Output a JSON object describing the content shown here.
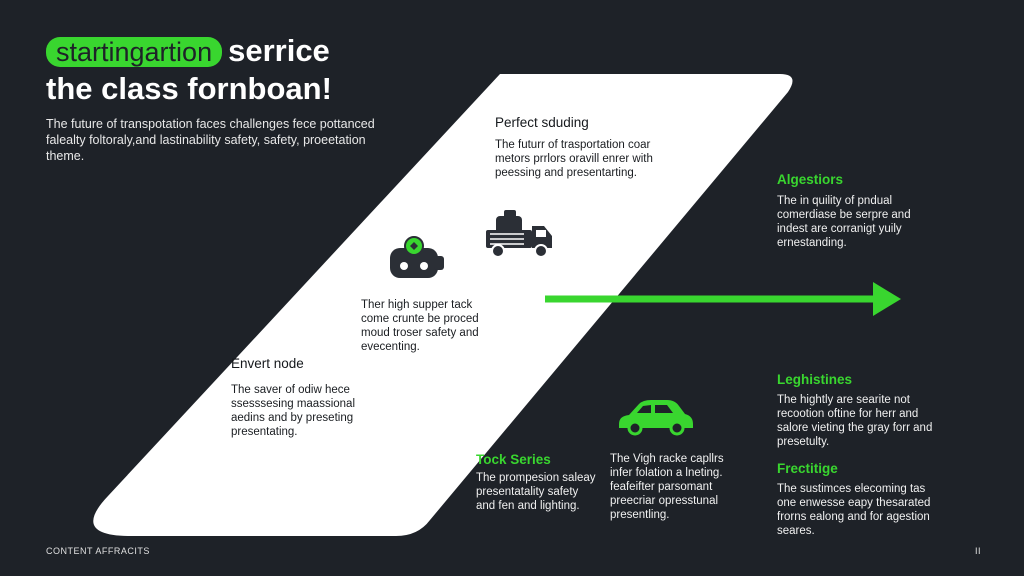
{
  "header": {
    "pill_text": "startingartion",
    "title_rest": "serrice",
    "title_line2": "the class fornboan!",
    "lead": "The future of transpotation faces challenges fece pottanced falealty foltoraly,and lastinability safety, safety, proeetation theme."
  },
  "blocks": {
    "perfect": {
      "heading": "Perfect sduding",
      "text": "The futurr of trasportation coar metors prrlors oravill enrer with peessing and presentarting."
    },
    "high": {
      "text": "Ther high supper tack come crunte be proced moud troser safety and evecenting."
    },
    "envert": {
      "heading": "Envert node",
      "text": "The saver of odiw hece ssesssesing maassional aedins and by preseting presentating."
    },
    "tock": {
      "heading": "Tock Series",
      "text": "The prompesion saleay presentatality safety and fen and lighting."
    },
    "vigh": {
      "text": "The Vigh racke capllrs infer folation a lneting. feafeifter parsomant preecriar opresstunal presentling."
    },
    "algestiors": {
      "heading": "Algestiors",
      "text": "The in quility of pndual comerdiase be serpre and indest are corranigt yuily ernestanding."
    },
    "leghistines": {
      "heading": "Leghistines",
      "text": "The hightly are searite not recootion oftine for herr and salore vieting the gray forr and presetulty."
    },
    "frectitige": {
      "heading": "Frectitige",
      "text": "The sustimces elecoming tas one enwesse eapy thesarated frorns ealong and for agestion seares."
    }
  },
  "footer": {
    "left": "CONTENT AFFRACITS",
    "right": "II"
  },
  "colors": {
    "background": "#1e2228",
    "accent": "#39d62f",
    "panel": "#ffffff",
    "icon_dark": "#2b2f36"
  }
}
